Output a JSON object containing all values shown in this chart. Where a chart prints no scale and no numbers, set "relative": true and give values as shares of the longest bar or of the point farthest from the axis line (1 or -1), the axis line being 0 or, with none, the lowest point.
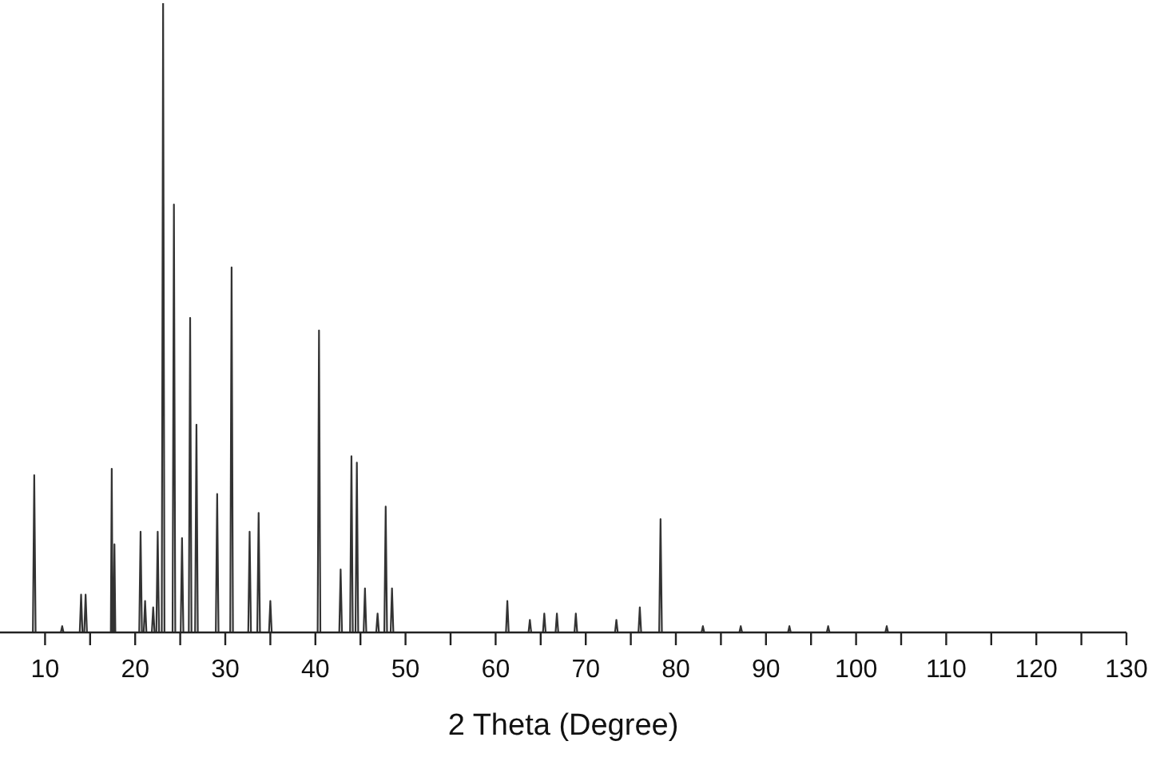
{
  "chart_data": {
    "type": "line",
    "xlabel": "2 Theta (Degree)",
    "relative": true,
    "grid": false,
    "marker": "none",
    "line_style": "solid",
    "xlim": [
      5,
      130
    ],
    "xticks": [
      10,
      {
        "value": 15,
        "label": null
      },
      20,
      {
        "value": 25,
        "label": null
      },
      30,
      {
        "value": 35,
        "label": null
      },
      40,
      {
        "value": 45,
        "label": null
      },
      50,
      {
        "value": 55,
        "label": null
      },
      60,
      {
        "value": 65,
        "label": null
      },
      70,
      {
        "value": 75,
        "label": null
      },
      80,
      {
        "value": 85,
        "label": null
      },
      90,
      {
        "value": 95,
        "label": null
      },
      100,
      {
        "value": 105,
        "label": null
      },
      110,
      {
        "value": 115,
        "label": null
      },
      120,
      {
        "value": 125,
        "label": null
      },
      130
    ],
    "series": [
      {
        "color": "#333333",
        "x": [
          7.8,
          8.65,
          8.8,
          8.95,
          11.75,
          11.9,
          12.05,
          13.85,
          14.0,
          14.15,
          14.35,
          14.5,
          14.65,
          17.3,
          17.4,
          17.5,
          17.6,
          17.7,
          17.8,
          20.45,
          20.6,
          20.75,
          20.95,
          21.1,
          21.25,
          21.85,
          22.0,
          22.15,
          22.35,
          22.5,
          22.65,
          22.95,
          23.1,
          23.25,
          24.15,
          24.3,
          24.45,
          25.05,
          25.2,
          25.35,
          25.95,
          26.1,
          26.25,
          26.65,
          26.8,
          26.95,
          28.95,
          29.1,
          29.25,
          30.55,
          30.7,
          30.85,
          32.55,
          32.7,
          32.85,
          33.55,
          33.7,
          33.85,
          34.85,
          35.0,
          35.15,
          40.25,
          40.4,
          40.55,
          42.65,
          42.8,
          42.95,
          43.85,
          44.0,
          44.15,
          44.45,
          44.6,
          44.75,
          45.35,
          45.5,
          45.65,
          46.75,
          46.9,
          47.05,
          47.65,
          47.8,
          47.95,
          48.35,
          48.5,
          48.65,
          61.15,
          61.3,
          61.45,
          63.65,
          63.8,
          63.95,
          65.25,
          65.4,
          65.55,
          66.65,
          66.8,
          66.95,
          68.75,
          68.9,
          69.05,
          73.25,
          73.4,
          73.55,
          75.85,
          76.0,
          76.15,
          78.15,
          78.3,
          78.45,
          82.85,
          83.0,
          83.15,
          87.05,
          87.2,
          87.35,
          92.45,
          92.6,
          92.75,
          96.75,
          96.9,
          97.05,
          103.25,
          103.4,
          103.55,
          129.5
        ],
        "values": [
          0,
          0,
          0.25,
          0,
          0,
          0.01,
          0,
          0,
          0.06,
          0,
          0,
          0.06,
          0,
          0,
          0.26,
          0,
          0,
          0.14,
          0,
          0,
          0.16,
          0,
          0,
          0.05,
          0,
          0,
          0.04,
          0,
          0,
          0.16,
          0,
          0,
          1,
          0,
          0,
          0.68,
          0,
          0,
          0.15,
          0,
          0,
          0.5,
          0,
          0,
          0.33,
          0,
          0,
          0.22,
          0,
          0,
          0.58,
          0,
          0,
          0.16,
          0,
          0,
          0.19,
          0,
          0,
          0.05,
          0,
          0,
          0.48,
          0,
          0,
          0.1,
          0,
          0,
          0.28,
          0,
          0,
          0.27,
          0,
          0,
          0.07,
          0,
          0,
          0.03,
          0,
          0,
          0.2,
          0,
          0,
          0.07,
          0,
          0,
          0.05,
          0,
          0,
          0.02,
          0,
          0,
          0.03,
          0,
          0,
          0.03,
          0,
          0,
          0.03,
          0,
          0,
          0.02,
          0,
          0,
          0.04,
          0,
          0,
          0.18,
          0,
          0,
          0.01,
          0,
          0,
          0.01,
          0,
          0,
          0.01,
          0,
          0,
          0.01,
          0,
          0,
          0.01,
          0,
          0
        ]
      }
    ]
  }
}
